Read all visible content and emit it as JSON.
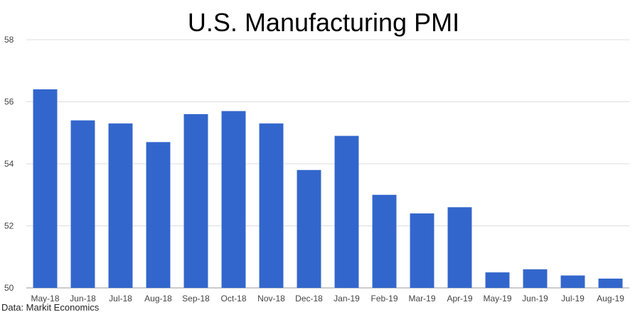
{
  "chart_data": {
    "type": "bar",
    "title": "U.S. Manufacturing PMI",
    "source": "Data: Markit Economics",
    "xlabel": "",
    "ylabel": "",
    "ylim": [
      50,
      58
    ],
    "yticks": [
      50,
      52,
      54,
      56,
      58
    ],
    "grid": true,
    "legend": "none",
    "categories": [
      "May-18",
      "Jun-18",
      "Jul-18",
      "Aug-18",
      "Sep-18",
      "Oct-18",
      "Nov-18",
      "Dec-18",
      "Jan-19",
      "Feb-19",
      "Mar-19",
      "Apr-19",
      "May-19",
      "Jun-19",
      "Jul-19",
      "Aug-19"
    ],
    "series": [
      {
        "name": "U.S. Manufacturing PMI",
        "values": [
          56.4,
          55.4,
          55.3,
          54.7,
          55.6,
          55.7,
          55.3,
          53.8,
          54.9,
          53.0,
          52.4,
          52.6,
          50.5,
          50.6,
          50.4,
          50.3
        ]
      }
    ],
    "bar_color": "#3366cc",
    "grid_color": "#dddddd"
  }
}
